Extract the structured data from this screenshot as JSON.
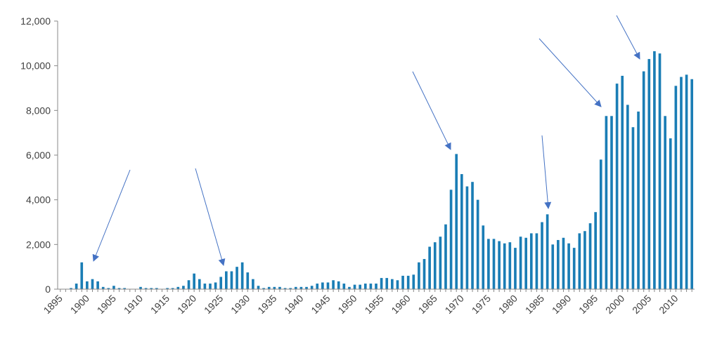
{
  "chart_data": {
    "type": "bar",
    "categories": [
      "1895",
      null,
      null,
      null,
      null,
      "1900",
      null,
      null,
      null,
      null,
      "1905",
      null,
      null,
      null,
      null,
      "1910",
      null,
      null,
      null,
      null,
      "1915",
      null,
      null,
      null,
      null,
      "1920",
      null,
      null,
      null,
      null,
      "1925",
      null,
      null,
      null,
      null,
      "1930",
      null,
      null,
      null,
      null,
      "1935",
      null,
      null,
      null,
      null,
      "1940",
      null,
      null,
      null,
      null,
      "1945",
      null,
      null,
      null,
      null,
      "1950",
      null,
      null,
      null,
      null,
      "1955",
      null,
      null,
      null,
      null,
      "1960",
      null,
      null,
      null,
      null,
      "1965",
      null,
      null,
      null,
      null,
      "1970",
      null,
      null,
      null,
      null,
      "1975",
      null,
      null,
      null,
      null,
      "1980",
      null,
      null,
      null,
      null,
      "1985",
      null,
      null,
      null,
      null,
      "1990",
      null,
      null,
      null,
      null,
      "1995",
      null,
      null,
      null,
      null,
      "2000",
      null,
      null,
      null,
      null,
      "2005",
      null,
      null,
      null,
      null,
      "2010",
      null,
      null,
      null
    ],
    "values": [
      0,
      0,
      50,
      250,
      1200,
      350,
      450,
      350,
      100,
      50,
      150,
      50,
      50,
      0,
      0,
      100,
      50,
      50,
      50,
      0,
      50,
      50,
      100,
      150,
      400,
      700,
      450,
      250,
      250,
      300,
      550,
      800,
      800,
      1000,
      1200,
      750,
      450,
      150,
      50,
      100,
      100,
      100,
      50,
      50,
      100,
      100,
      100,
      150,
      250,
      300,
      300,
      400,
      350,
      250,
      100,
      200,
      200,
      250,
      250,
      250,
      500,
      500,
      450,
      400,
      600,
      600,
      650,
      1200,
      1350,
      1900,
      2100,
      2350,
      2900,
      4450,
      6050,
      5150,
      4600,
      4800,
      4000,
      2850,
      2250,
      2250,
      2150,
      2050,
      2100,
      1850,
      2350,
      2300,
      2500,
      2500,
      3000,
      3350,
      2000,
      2200,
      2300,
      2050,
      1850,
      2500,
      2600,
      2950,
      3450,
      5800,
      7750,
      7750,
      9200,
      9550,
      8250,
      7250,
      7950,
      9750,
      10300,
      10650,
      10550,
      7750,
      6750,
      9100,
      9500,
      9600,
      9400
    ],
    "color": "#1a7db5",
    "ylim": [
      0,
      12000
    ],
    "yticks": [
      0,
      {
        "value": 2000,
        "label": "2,000"
      },
      {
        "value": 4000,
        "label": "4,000"
      },
      {
        "value": 6000,
        "label": "6,000"
      },
      {
        "value": 8000,
        "label": "8,000"
      },
      {
        "value": 10000,
        "label": "10,000"
      },
      {
        "value": 12000,
        "label": "12,000"
      }
    ],
    "grid": false
  }
}
